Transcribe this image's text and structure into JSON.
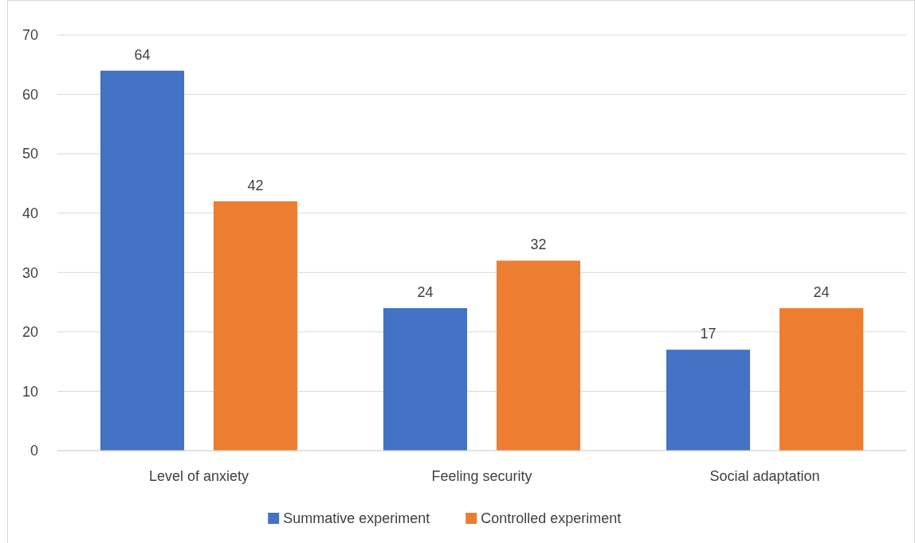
{
  "chart_data": {
    "type": "bar",
    "categories": [
      "Level of anxiety",
      "Feeling security",
      "Social adaptation"
    ],
    "series": [
      {
        "name": "Summative experiment",
        "color": "#4472c4",
        "values": [
          64,
          24,
          17
        ]
      },
      {
        "name": "Controlled experiment",
        "color": "#ed7d31",
        "values": [
          42,
          32,
          24
        ]
      }
    ],
    "ylim": [
      0,
      70
    ],
    "yticks": [
      0,
      10,
      20,
      30,
      40,
      50,
      60,
      70
    ],
    "grid": "y",
    "legend": "bottom",
    "data_labels": true
  }
}
